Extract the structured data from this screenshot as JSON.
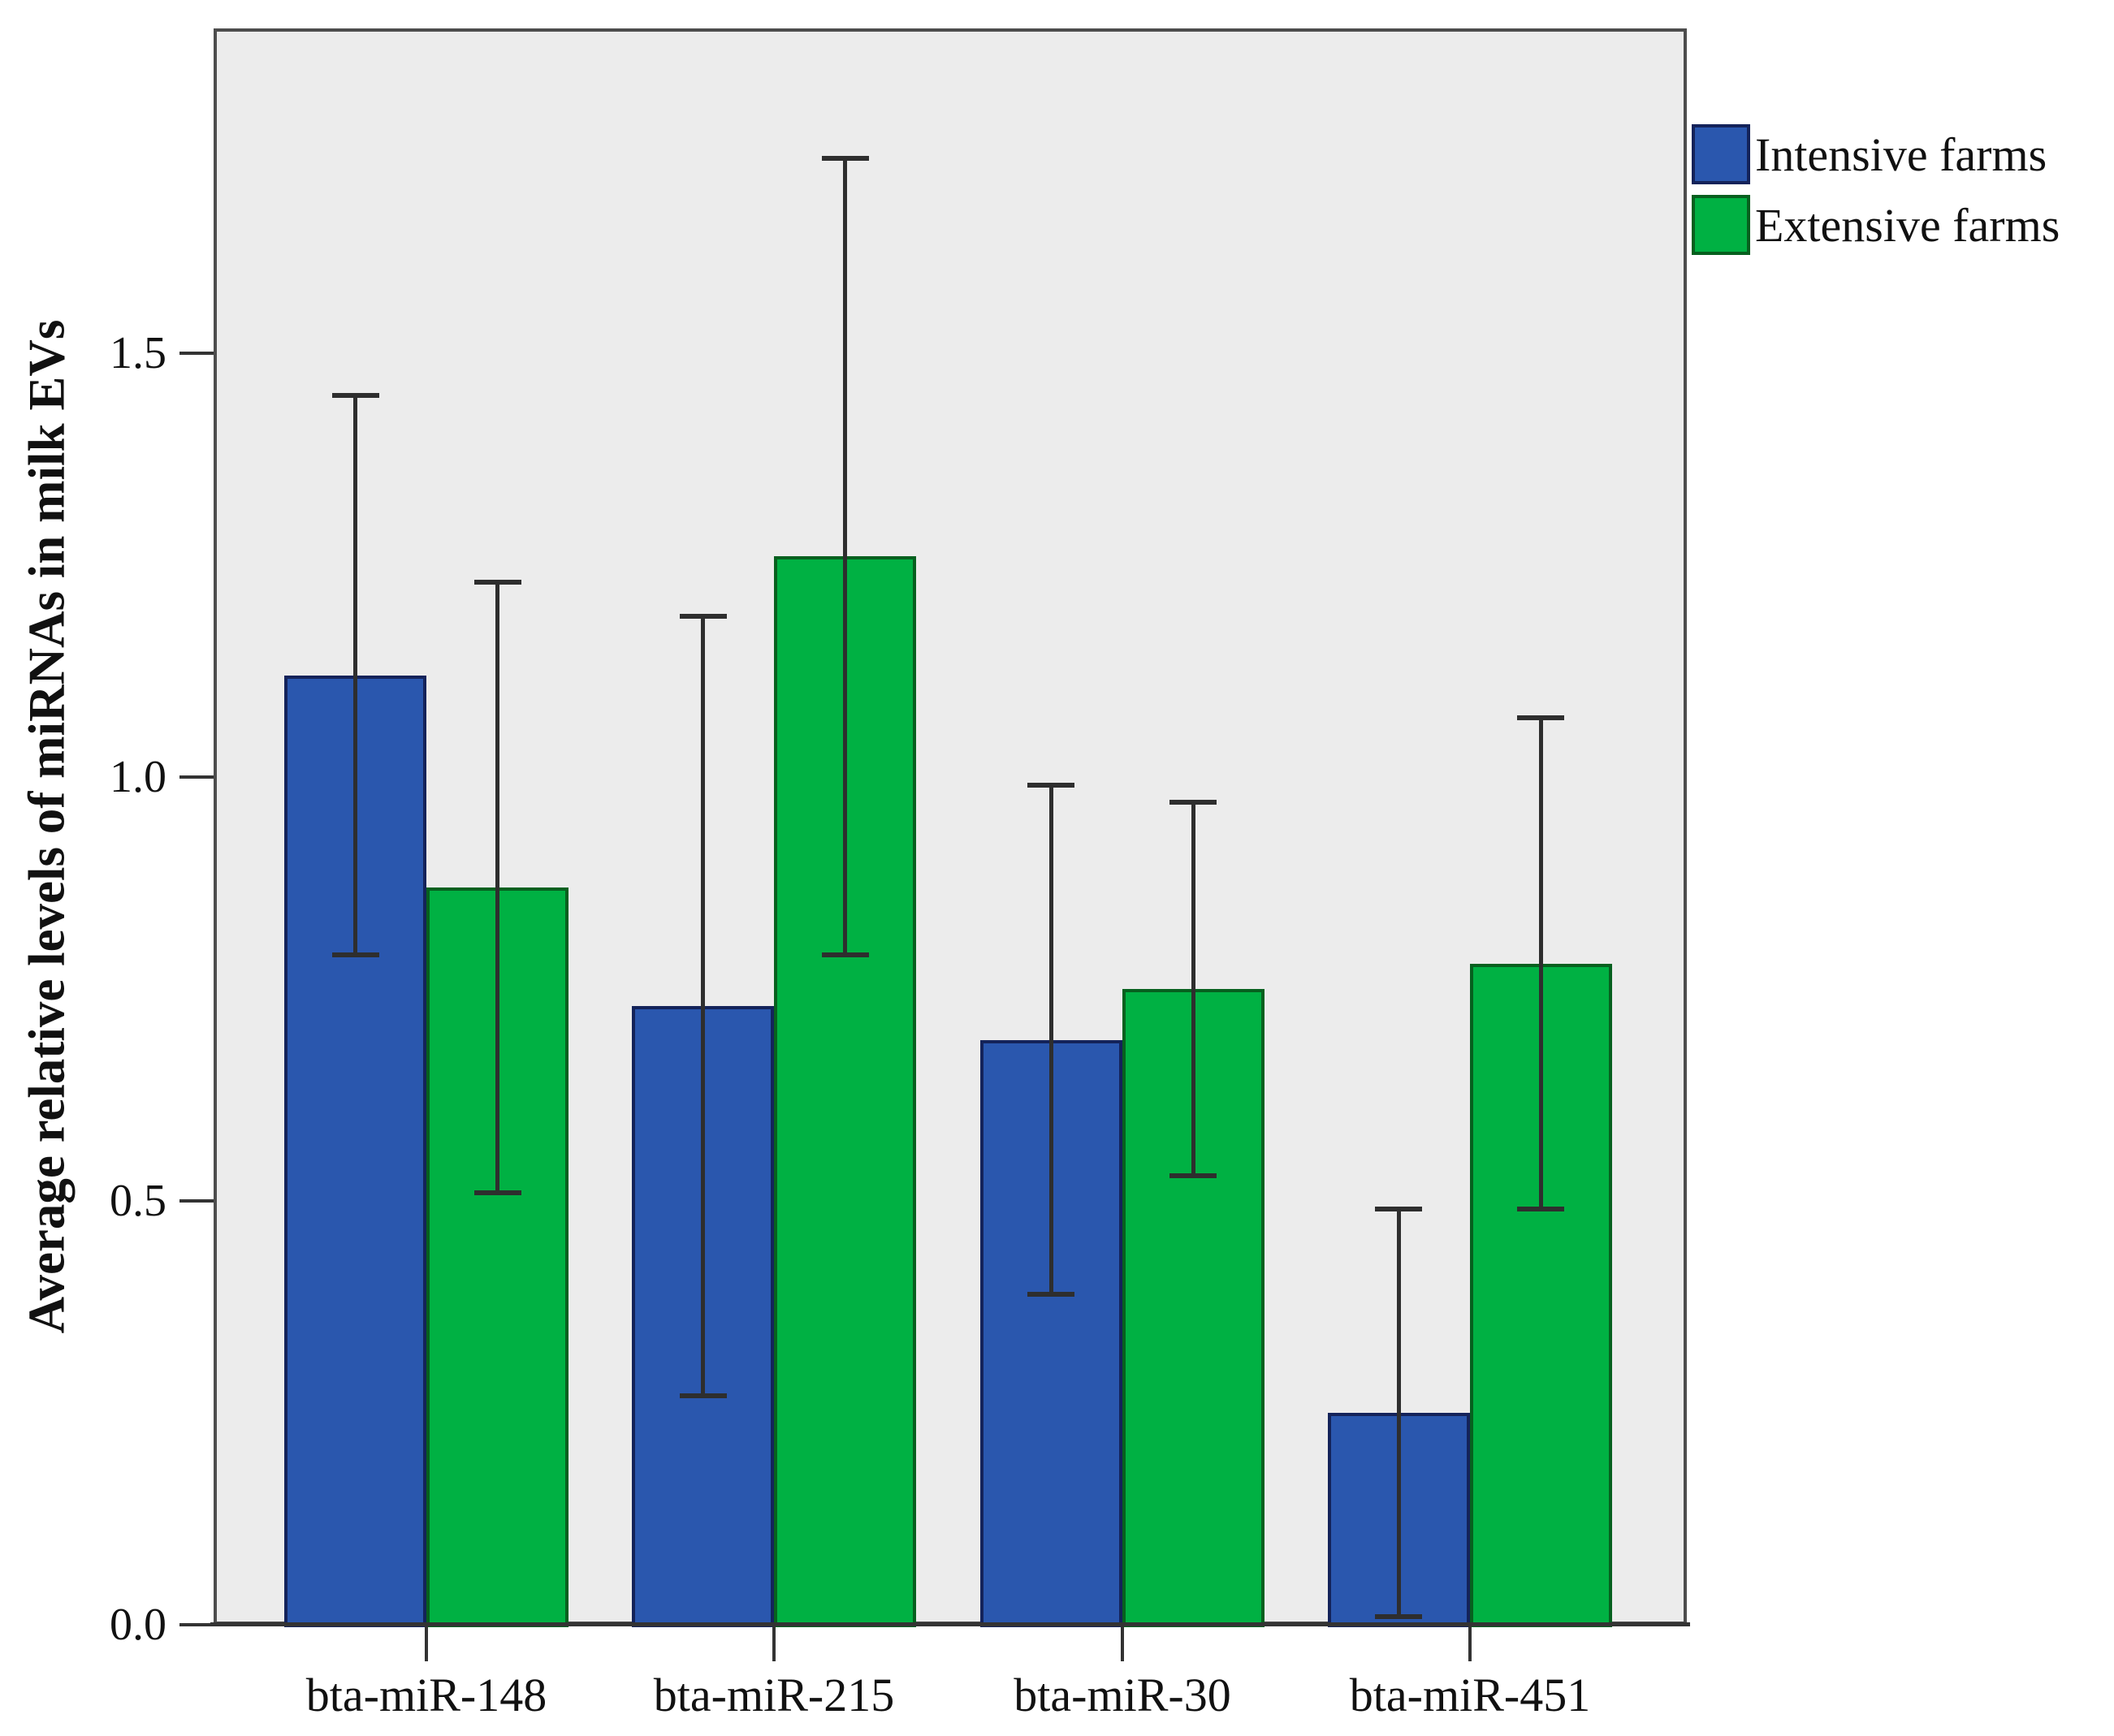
{
  "chart_data": {
    "type": "bar",
    "title": "",
    "xlabel": "",
    "ylabel": "Average relative levels of miRNAs in milk EVs",
    "categories": [
      "bta-miR-148",
      "bta-miR-215",
      "bta-miR-30",
      "bta-miR-451"
    ],
    "series": [
      {
        "name": "Intensive farms",
        "color": "#2a57ae",
        "border_color": "#14235a",
        "values": [
          1.12,
          0.73,
          0.69,
          0.25
        ],
        "errors": [
          0.33,
          0.46,
          0.3,
          0.24
        ]
      },
      {
        "name": "Extensive farms",
        "color": "#00b143",
        "border_color": "#07601f",
        "values": [
          0.87,
          1.26,
          0.75,
          0.78
        ],
        "errors": [
          0.36,
          0.47,
          0.22,
          0.29
        ]
      }
    ],
    "ytick_labels": [
      "0.0",
      "0.5",
      "1.0",
      "1.5"
    ],
    "ytick_values": [
      0.0,
      0.5,
      1.0,
      1.5
    ],
    "ylim": [
      0,
      1.883
    ],
    "grid": false,
    "error_bars": true,
    "legend_position": "top-right",
    "plot_bg_color": "#ececec"
  }
}
